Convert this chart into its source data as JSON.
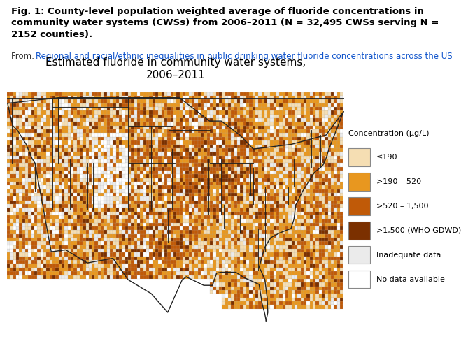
{
  "title_line1": "Estimated fluoride in community water systems,",
  "title_line2": "2006–2011",
  "header_text": "Fig. 1: County-level population weighted average of fluoride concentrations in\ncommunity water systems (CWSs) from 2006–2011 (N = 32,495 CWSs serving N =\n2152 counties).",
  "from_label": "From: ",
  "from_link": "Regional and racial/ethnic inequalities in public drinking water fluoride concentrations across the US",
  "legend_title": "Concentration (μg/L)",
  "legend_labels": [
    "≤190",
    ">190 – 520",
    ">520 – 1,500",
    ">1,500 (WHO GDWD)",
    "Inadequate data",
    "No data available"
  ],
  "legend_colors": [
    "#F5DEB3",
    "#E8971F",
    "#C05A08",
    "#7B3000",
    "#EBEBEB",
    "#FFFFFF"
  ],
  "bg": "#FFFFFF",
  "header_fontsize": 9.5,
  "from_fontsize": 8.5,
  "title_fontsize": 11,
  "legend_title_fontsize": 8,
  "legend_fontsize": 8
}
